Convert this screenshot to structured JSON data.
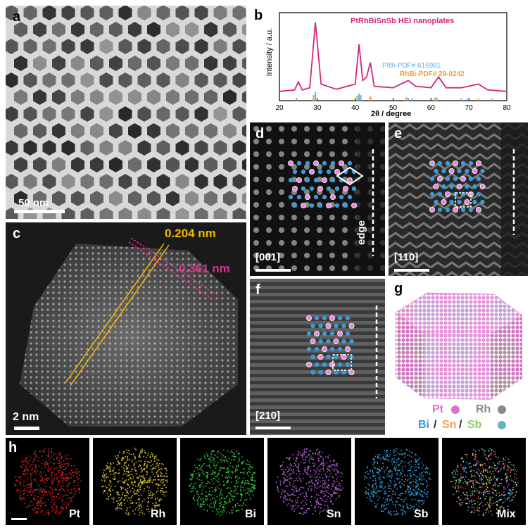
{
  "panels": {
    "a": {
      "label": "a",
      "scale": "50 nm"
    },
    "b": {
      "label": "b",
      "title": "PtRhBiSnSb HEI nanoplates",
      "ref1": "PtBi-PDF# 616981",
      "ref2": "RhBi-PDF# 29-0242",
      "ylabel": "Intensity / a.u.",
      "xlabel": "2θ / degree"
    },
    "c": {
      "label": "c",
      "d1": "0.204 nm",
      "d2": "0.361 nm",
      "scale": "2 nm"
    },
    "d": {
      "label": "d",
      "zone": "[001]",
      "edge": "edge"
    },
    "e": {
      "label": "e",
      "zone": "[110]"
    },
    "f": {
      "label": "f",
      "zone": "[210]"
    },
    "g": {
      "label": "g",
      "pt": "Pt",
      "rh": "Rh",
      "bi": "Bi",
      "sn": "Sn",
      "sb": "Sb",
      "slash": "/"
    },
    "h": {
      "label": "h",
      "maps": [
        "Pt",
        "Rh",
        "Bi",
        "Sn",
        "Sb",
        "Mix"
      ]
    }
  },
  "colors": {
    "pt": "#e070d0",
    "rh": "#8a8a8a",
    "bi": "#3b9ad8",
    "sn": "#f5a050",
    "sb": "#90c870",
    "yellow": "#f5b800",
    "magenta": "#e0308a",
    "curve": "#d6247a"
  },
  "chart_data": {
    "type": "line",
    "title": "PtRhBiSnSb HEI nanoplates",
    "xlabel": "2θ / degree",
    "ylabel": "Intensity / a.u.",
    "xlim": [
      20,
      80
    ],
    "xticks": [
      20,
      30,
      40,
      50,
      60,
      70,
      80
    ],
    "series": [
      {
        "name": "PtRhBiSnSb HEI nanoplates",
        "x": [
          20,
          24,
          25,
          26,
          28,
          29.5,
          31,
          35,
          40,
          41,
          42,
          43,
          44,
          45,
          50,
          54,
          56,
          60,
          62,
          64,
          68,
          72.5,
          75,
          80
        ],
        "y": [
          0.05,
          0.07,
          0.18,
          0.07,
          0.1,
          1.0,
          0.15,
          0.08,
          0.15,
          0.7,
          0.2,
          0.25,
          0.45,
          0.12,
          0.1,
          0.2,
          0.12,
          0.1,
          0.25,
          0.1,
          0.1,
          0.15,
          0.07,
          0.05
        ]
      },
      {
        "name": "PtBi-PDF# 616981",
        "x": [
          24.5,
          29.5,
          41,
          41.5,
          44,
          54,
          55,
          61.5,
          68,
          69.5,
          76
        ],
        "y": [
          0.2,
          0.6,
          0.5,
          0.4,
          0.3,
          0.2,
          0.15,
          0.25,
          0.15,
          0.1,
          0.15
        ]
      },
      {
        "name": "RhBi-PDF# 29-0242",
        "x": [
          29,
          40.5,
          44,
          53.5,
          61,
          72.5
        ],
        "y": [
          0.4,
          0.35,
          0.3,
          0.25,
          0.2,
          0.15
        ]
      }
    ]
  }
}
